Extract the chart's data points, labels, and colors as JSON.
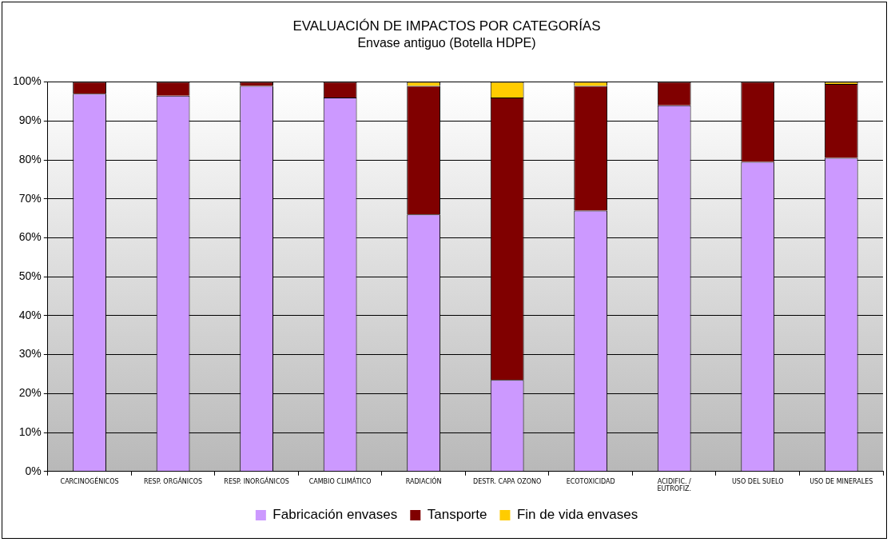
{
  "chart_data": {
    "type": "bar",
    "title": "EVALUACIÓN DE IMPACTOS POR CATEGORÍAS",
    "subtitle": "Envase antiguo (Botella HDPE)",
    "categories": [
      "CARCINOGÉNICOS",
      "RESP. ORGÁNICOS",
      "RESP. INORGÁNICOS",
      "CAMBIO CLIMÁTICO",
      "RADIACIÓN",
      "DESTR. CAPA OZONO",
      "ECOTOXICIDAD",
      "ACIDIFIC. / EUTROFIZ.",
      "USO DEL SUELO",
      "USO DE MINERALES"
    ],
    "stacked": true,
    "series": [
      {
        "name": "Fabricación envases",
        "color": "#cc99ff",
        "values": [
          97,
          96.5,
          99,
          96,
          66,
          23.5,
          67,
          94,
          79.5,
          80.5
        ]
      },
      {
        "name": "Tansporte",
        "color": "#800000",
        "values": [
          3,
          3.5,
          1,
          4,
          33,
          72.5,
          32,
          6,
          20.5,
          19
        ]
      },
      {
        "name": "Fin de vida envases",
        "color": "#ffcc00",
        "values": [
          0,
          0,
          0,
          0,
          1,
          4,
          1,
          0,
          0,
          0.5
        ]
      }
    ],
    "ylim": [
      0,
      100
    ],
    "yticks": [
      {
        "value": 0,
        "label": "0%"
      },
      {
        "value": 10,
        "label": "10%"
      },
      {
        "value": 20,
        "label": "20%"
      },
      {
        "value": 30,
        "label": "30%"
      },
      {
        "value": 40,
        "label": "40%"
      },
      {
        "value": 50,
        "label": "50%"
      },
      {
        "value": 60,
        "label": "60%"
      },
      {
        "value": 70,
        "label": "70%"
      },
      {
        "value": 80,
        "label": "80%"
      },
      {
        "value": 90,
        "label": "90%"
      },
      {
        "value": 100,
        "label": "100%"
      }
    ],
    "grid": "y",
    "legend": "bottom"
  }
}
